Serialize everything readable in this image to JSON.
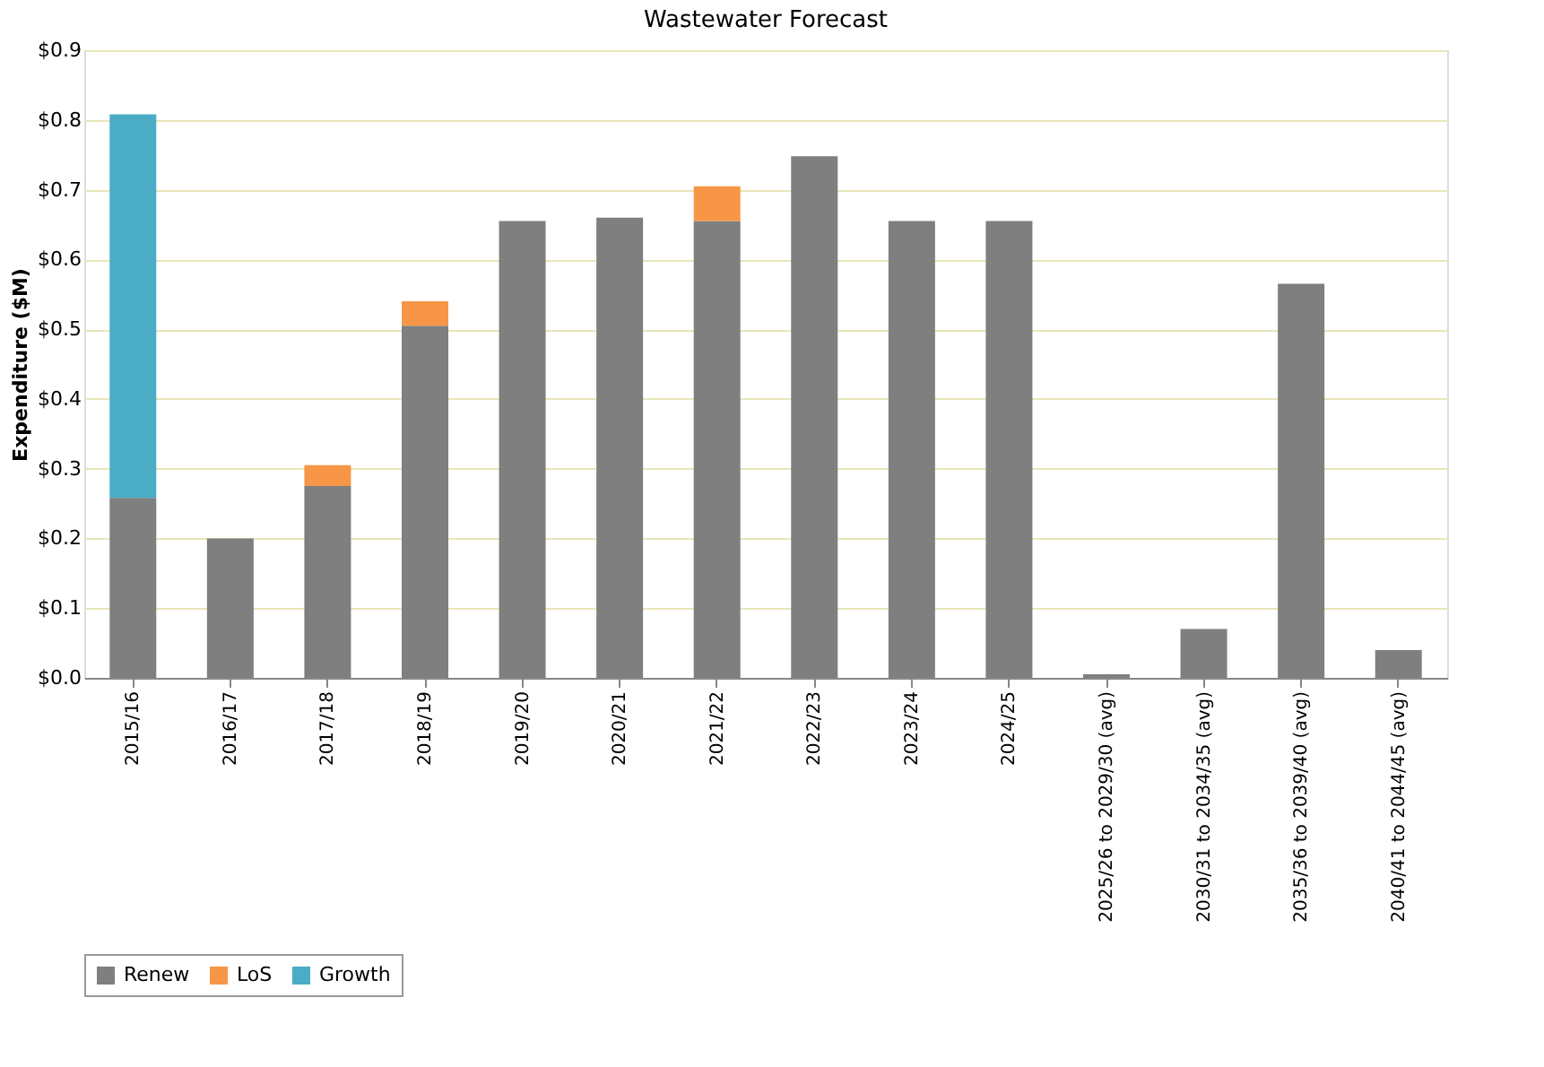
{
  "chart_data": {
    "type": "bar",
    "stacked": true,
    "title": "Wastewater Forecast",
    "ylabel": "Expenditure ($M)",
    "categories": [
      "2015/16",
      "2016/17",
      "2017/18",
      "2018/19",
      "2019/20",
      "2020/21",
      "2021/22",
      "2022/23",
      "2023/24",
      "2024/25",
      "2025/26 to 2029/30 (avg)",
      "2030/31 to 2034/35 (avg)",
      "2035/36 to 2039/40 (avg)",
      "2040/41 to 2044/45 (avg)"
    ],
    "series": [
      {
        "name": "Renew",
        "color": "#7f7f7f",
        "values": [
          0.258,
          0.2,
          0.275,
          0.505,
          0.655,
          0.66,
          0.655,
          0.748,
          0.655,
          0.655,
          0.005,
          0.07,
          0.565,
          0.04
        ]
      },
      {
        "name": "LoS",
        "color": "#f79646",
        "values": [
          0,
          0,
          0.03,
          0.035,
          0,
          0,
          0.05,
          0,
          0,
          0,
          0,
          0,
          0,
          0
        ]
      },
      {
        "name": "Growth",
        "color": "#4bacc6",
        "values": [
          0.55,
          0,
          0,
          0,
          0,
          0,
          0,
          0,
          0,
          0,
          0,
          0,
          0,
          0
        ]
      }
    ],
    "ylim": [
      0,
      0.9
    ],
    "yticks": [
      {
        "value": 0,
        "label": "$0.0"
      },
      {
        "value": 0.1,
        "label": "$0.1"
      },
      {
        "value": 0.2,
        "label": "$0.2"
      },
      {
        "value": 0.3,
        "label": "$0.3"
      },
      {
        "value": 0.4,
        "label": "$0.4"
      },
      {
        "value": 0.5,
        "label": "$0.5"
      },
      {
        "value": 0.6,
        "label": "$0.6"
      },
      {
        "value": 0.7,
        "label": "$0.7"
      },
      {
        "value": 0.8,
        "label": "$0.8"
      },
      {
        "value": 0.9,
        "label": "$0.9"
      }
    ],
    "grid": "y",
    "legend": "bottom"
  }
}
